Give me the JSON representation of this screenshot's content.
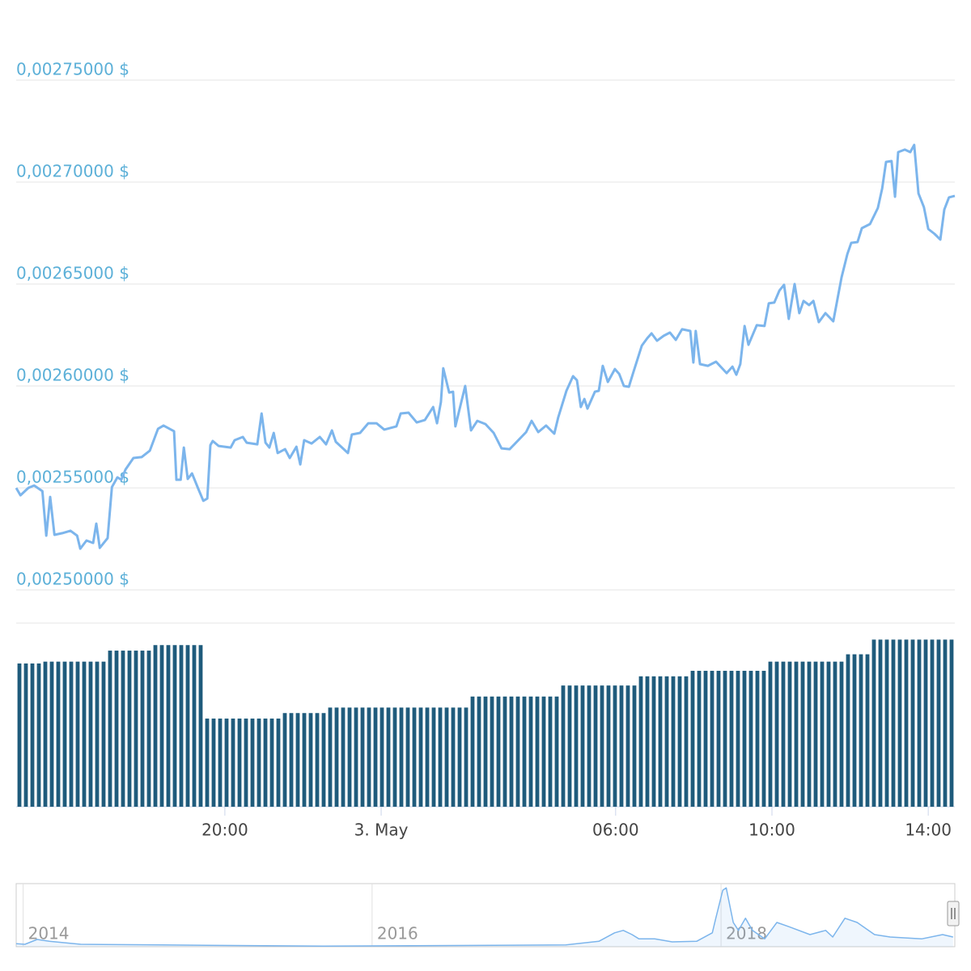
{
  "chart_data": [
    {
      "type": "line",
      "color": "#7cb5ec",
      "x": [
        -9.34,
        -9.23,
        -9.03,
        -8.88,
        -8.67,
        -8.57,
        -8.47,
        -8.36,
        -8.16,
        -7.95,
        -7.78,
        -7.7,
        -7.54,
        -7.37,
        -7.29,
        -7.2,
        -7.0,
        -6.89,
        -6.75,
        -6.65,
        -6.54,
        -6.34,
        -6.13,
        -5.92,
        -5.71,
        -5.57,
        -5.3,
        -5.24,
        -5.13,
        -5.05,
        -4.95,
        -4.84,
        -4.68,
        -4.55,
        -4.45,
        -4.37,
        -4.31,
        -4.16,
        -3.85,
        -3.75,
        -3.54,
        -3.44,
        -3.17,
        -3.06,
        -2.96,
        -2.86,
        -2.75,
        -2.65,
        -2.46,
        -2.34,
        -2.17,
        -2.07,
        -1.97,
        -1.78,
        -1.57,
        -1.41,
        -1.26,
        -1.16,
        -0.85,
        -0.75,
        -0.54,
        -0.33,
        -0.12,
        0.08,
        0.39,
        0.5,
        0.7,
        0.91,
        1.12,
        1.33,
        1.43,
        1.53,
        1.59,
        1.74,
        1.84,
        1.9,
        2.15,
        2.3,
        2.46,
        2.67,
        2.88,
        3.08,
        3.29,
        3.71,
        3.85,
        4.02,
        4.22,
        4.43,
        4.53,
        4.74,
        4.91,
        5.01,
        5.11,
        5.2,
        5.28,
        5.47,
        5.57,
        5.67,
        5.8,
        5.98,
        6.09,
        6.21,
        6.34,
        6.44,
        6.67,
        6.81,
        6.92,
        7.06,
        7.23,
        7.39,
        7.54,
        7.7,
        7.91,
        7.99,
        8.05,
        8.16,
        8.36,
        8.57,
        8.84,
        8.99,
        9.09,
        9.19,
        9.3,
        9.4,
        9.61,
        9.81,
        9.92,
        10.06,
        10.19,
        10.31,
        10.43,
        10.58,
        10.7,
        10.81,
        10.95,
        11.06,
        11.2,
        11.37,
        11.57,
        11.78,
        11.93,
        12.03,
        12.19,
        12.3,
        12.51,
        12.71,
        12.82,
        12.92,
        13.06,
        13.15,
        13.23,
        13.4,
        13.54,
        13.64,
        13.75,
        13.89,
        14.0,
        14.16,
        14.31,
        14.41,
        14.53,
        14.68
      ],
      "values": [
        0.00255,
        0.0025464,
        0.00255,
        0.0025512,
        0.0025484,
        0.0025266,
        0.0025456,
        0.002527,
        0.0025278,
        0.002529,
        0.0025266,
        0.0025202,
        0.0025242,
        0.002523,
        0.0025325,
        0.0025206,
        0.0025254,
        0.0025504,
        0.0025552,
        0.002554,
        0.0025591,
        0.0025647,
        0.0025651,
        0.0025683,
        0.002579,
        0.0025806,
        0.0025778,
        0.002554,
        0.002554,
        0.0025698,
        0.0025544,
        0.0025571,
        0.0025496,
        0.0025437,
        0.0025448,
        0.002571,
        0.002573,
        0.0025706,
        0.0025698,
        0.0025734,
        0.002575,
        0.0025722,
        0.0025714,
        0.0025865,
        0.0025722,
        0.0025698,
        0.002577,
        0.0025671,
        0.002569,
        0.0025647,
        0.0025702,
        0.0025615,
        0.0025734,
        0.0025718,
        0.002575,
        0.0025714,
        0.0025782,
        0.0025726,
        0.0025671,
        0.0025762,
        0.002577,
        0.0025817,
        0.0025817,
        0.0025786,
        0.0025802,
        0.0025865,
        0.0025869,
        0.0025821,
        0.0025833,
        0.0025897,
        0.0025817,
        0.0025921,
        0.0026087,
        0.0025968,
        0.0025972,
        0.0025802,
        0.0026,
        0.0025782,
        0.0025829,
        0.0025813,
        0.002577,
        0.0025694,
        0.002569,
        0.0025774,
        0.0025829,
        0.0025774,
        0.0025806,
        0.0025766,
        0.0025845,
        0.0025976,
        0.0026048,
        0.0026028,
        0.0025897,
        0.0025936,
        0.0025889,
        0.0025972,
        0.0025976,
        0.0026099,
        0.002602,
        0.0026083,
        0.0026059,
        0.0026,
        0.0025996,
        0.0026059,
        0.0026198,
        0.0026234,
        0.0026258,
        0.0026222,
        0.0026246,
        0.0026262,
        0.0026226,
        0.0026278,
        0.002627,
        0.0026115,
        0.002627,
        0.0026107,
        0.0026099,
        0.0026119,
        0.0026063,
        0.0026095,
        0.0026055,
        0.0026107,
        0.0026294,
        0.0026202,
        0.0026298,
        0.0026294,
        0.0026405,
        0.0026409,
        0.0026468,
        0.0026496,
        0.0026329,
        0.00265,
        0.0026357,
        0.0026417,
        0.0026397,
        0.0026417,
        0.0026313,
        0.0026357,
        0.0026317,
        0.0026532,
        0.0026647,
        0.0026702,
        0.0026706,
        0.0026774,
        0.0026794,
        0.0026873,
        0.0026968,
        0.0027099,
        0.0027103,
        0.0026928,
        0.0027147,
        0.0027159,
        0.0027147,
        0.0027182,
        0.0026944,
        0.0026877,
        0.002677,
        0.0026746,
        0.0026718,
        0.0026865,
        0.0026925,
        0.0026932
      ],
      "xlim": [
        -9.34,
        14.68
      ],
      "xticks": [
        {
          "value": -4,
          "label": "20:00"
        },
        {
          "value": 0,
          "label": "3. May"
        },
        {
          "value": 6,
          "label": "06:00"
        },
        {
          "value": 10,
          "label": "10:00"
        },
        {
          "value": 14,
          "label": "14:00"
        }
      ],
      "ylim": [
        0.0025,
        0.00278
      ],
      "yticks": [
        {
          "value": 0.0025,
          "label": "0,00250000 $"
        },
        {
          "value": 0.00255,
          "label": "0,00255000 $"
        },
        {
          "value": 0.0026,
          "label": "0,00260000 $"
        },
        {
          "value": 0.00265,
          "label": "0,00265000 $"
        },
        {
          "value": 0.0027,
          "label": "0,00270000 $"
        },
        {
          "value": 0.00275,
          "label": "0,00275000 $"
        }
      ],
      "grid": true
    },
    {
      "type": "bar",
      "color": "#1f5b7c",
      "ylim": [
        0,
        100
      ],
      "values": [
        78,
        78,
        78,
        78,
        79,
        79,
        79,
        79,
        79,
        79,
        79,
        79,
        79,
        79,
        85,
        85,
        85,
        85,
        85,
        85,
        85,
        88,
        88,
        88,
        88,
        88,
        88,
        88,
        88,
        48,
        48,
        48,
        48,
        48,
        48,
        48,
        48,
        48,
        48,
        48,
        48,
        51,
        51,
        51,
        51,
        51,
        51,
        51,
        54,
        54,
        54,
        54,
        54,
        54,
        54,
        54,
        54,
        54,
        54,
        54,
        54,
        54,
        54,
        54,
        54,
        54,
        54,
        54,
        54,
        54,
        60,
        60,
        60,
        60,
        60,
        60,
        60,
        60,
        60,
        60,
        60,
        60,
        60,
        60,
        66,
        66,
        66,
        66,
        66,
        66,
        66,
        66,
        66,
        66,
        66,
        66,
        71,
        71,
        71,
        71,
        71,
        71,
        71,
        71,
        74,
        74,
        74,
        74,
        74,
        74,
        74,
        74,
        74,
        74,
        74,
        74,
        79,
        79,
        79,
        79,
        79,
        79,
        79,
        79,
        79,
        79,
        79,
        79,
        83,
        83,
        83,
        83,
        91,
        91,
        91,
        91,
        91,
        91,
        91,
        91,
        91,
        91,
        91,
        91,
        91
      ]
    },
    {
      "type": "line",
      "color": "#7cb5ec",
      "x": [
        2013.96,
        2014.01,
        2014.08,
        2014.15,
        2014.33,
        2014.8,
        2015.72,
        2017.11,
        2017.3,
        2017.39,
        2017.44,
        2017.49,
        2017.53,
        2017.62,
        2017.72,
        2017.86,
        2017.95,
        2017.97,
        2018.01,
        2018.03,
        2018.07,
        2018.1,
        2018.14,
        2018.18,
        2018.25,
        2018.32,
        2018.39,
        2018.51,
        2018.6,
        2018.64,
        2018.71,
        2018.78,
        2018.88,
        2018.97,
        2019.15,
        2019.27,
        2019.33
      ],
      "values": [
        5,
        4,
        12,
        9,
        4,
        3,
        1,
        3,
        9,
        23,
        27,
        20,
        13,
        13,
        8,
        9,
        23,
        47,
        93,
        97,
        40,
        27,
        47,
        27,
        13,
        40,
        33,
        20,
        27,
        16,
        47,
        40,
        20,
        16,
        13,
        20,
        16
      ],
      "xlim": [
        2013.96,
        2019.34
      ],
      "ylim": [
        0,
        100
      ],
      "xticks": [
        2014,
        2016,
        2018
      ],
      "grid": true
    }
  ]
}
